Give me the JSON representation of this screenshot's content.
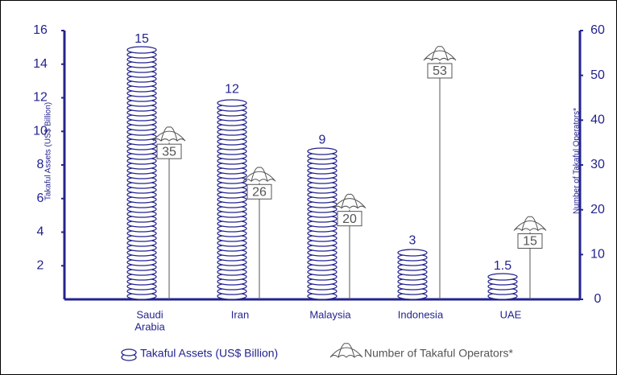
{
  "chart_data": {
    "type": "bar",
    "y_label": "Takaful Assets (US$ Billion)",
    "y2_label": "Number of Takaful Operators*",
    "categories": [
      [
        "Saudi",
        "Arabia"
      ],
      "Iran",
      "Malaysia",
      "Indonesia",
      "UAE"
    ],
    "series": [
      {
        "name": "Takaful Assets (US$ Billion)",
        "color": "#23238f",
        "values": [
          15,
          12,
          9,
          3,
          1.5
        ]
      },
      {
        "name": "Number of Takaful Operators*",
        "color": "#555555",
        "axis": "y2",
        "values": [
          35,
          26,
          20,
          53,
          15
        ]
      }
    ],
    "ylim": [
      0,
      16
    ],
    "yticks": [
      2,
      4,
      6,
      8,
      10,
      12,
      14,
      16
    ],
    "y2lim": [
      0,
      60
    ],
    "y2ticks": [
      0,
      10,
      20,
      30,
      40,
      50,
      60
    ],
    "axis_color": "#23238f"
  }
}
